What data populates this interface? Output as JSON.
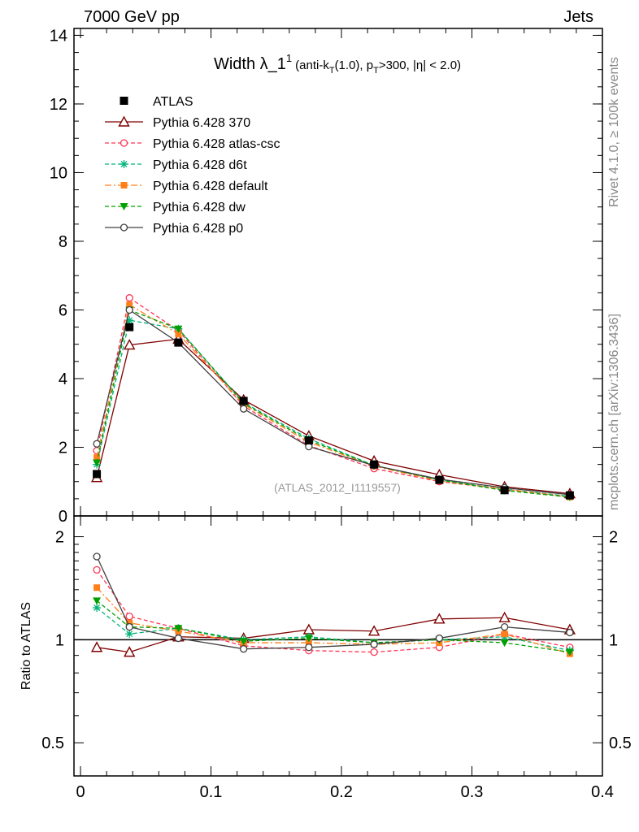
{
  "header": {
    "left": "7000 GeV pp",
    "right": "Jets"
  },
  "title": {
    "main": "Width λ_1",
    "sup": "1",
    "detail_a": "(anti-k",
    "detail_sub1": "T",
    "detail_b": "(1.0), p",
    "detail_sub2": "T",
    "detail_c": ">300, |η| < 2.0)"
  },
  "side_labels": {
    "rivet": "Rivet 4.1.0, ≥ 100k events",
    "mcplots": "mcplots.cern.ch [arXiv:1306.3436]"
  },
  "analysis_label": "(ATLAS_2012_I1119557)",
  "ratio_ylabel": "Ratio to ATLAS",
  "colors": {
    "data": "#000000",
    "p370": "#800000",
    "atlascsc": "#ff3355",
    "d6t": "#00b37a",
    "default": "#ff7f1a",
    "dw": "#00a000",
    "p0": "#404040"
  },
  "chart_data": {
    "type": "line",
    "x": [
      0.0125,
      0.0375,
      0.075,
      0.125,
      0.175,
      0.225,
      0.275,
      0.325,
      0.375
    ],
    "xlim": [
      -0.005,
      0.4
    ],
    "xticks": [
      0,
      0.1,
      0.2,
      0.3,
      0.4
    ],
    "xtick_labels": [
      "0",
      "0.1",
      "0.2",
      "0.3",
      "0.4"
    ],
    "main_ylim": [
      0,
      14.2
    ],
    "main_yticks": [
      0,
      2,
      4,
      6,
      8,
      10,
      12,
      14
    ],
    "main_ytick_labels": [
      "0",
      "2",
      "4",
      "6",
      "8",
      "10",
      "12",
      "14"
    ],
    "ratio_ylim": [
      0.4,
      2.3
    ],
    "ratio_ylabel": "Ratio to ATLAS",
    "ratio_yticks": [
      0.5,
      1,
      2
    ],
    "ratio_ytick_labels": [
      "0.5",
      "1",
      "2"
    ],
    "data": {
      "name": "ATLAS",
      "values": [
        1.22,
        5.5,
        5.05,
        3.35,
        2.2,
        1.5,
        1.05,
        0.75,
        0.6
      ]
    },
    "series": [
      {
        "name": "Pythia 6.428 370",
        "key": "p370",
        "style": "solid",
        "marker": "triangle-open",
        "values": [
          1.12,
          4.98,
          5.15,
          3.38,
          2.33,
          1.6,
          1.2,
          0.85,
          0.65
        ],
        "ratio": [
          0.95,
          0.92,
          1.02,
          1.01,
          1.07,
          1.06,
          1.15,
          1.16,
          1.07
        ]
      },
      {
        "name": "Pythia 6.428 atlas-csc",
        "key": "atlascsc",
        "style": "dashed",
        "marker": "circle-open",
        "values": [
          1.9,
          6.35,
          5.4,
          3.2,
          2.05,
          1.38,
          1.0,
          0.78,
          0.57
        ],
        "ratio": [
          1.6,
          1.17,
          1.08,
          0.96,
          0.93,
          0.92,
          0.95,
          1.04,
          0.95
        ]
      },
      {
        "name": "Pythia 6.428 d6t",
        "key": "d6t",
        "style": "dashed",
        "marker": "star",
        "values": [
          1.5,
          5.7,
          5.45,
          3.3,
          2.25,
          1.47,
          1.05,
          0.78,
          0.57
        ],
        "ratio": [
          1.24,
          1.04,
          1.08,
          1.0,
          1.02,
          0.98,
          1.0,
          1.02,
          0.93
        ]
      },
      {
        "name": "Pythia 6.428 default",
        "key": "default",
        "style": "dashdot",
        "marker": "square-filled",
        "values": [
          1.7,
          6.15,
          5.3,
          3.25,
          2.15,
          1.45,
          1.02,
          0.78,
          0.55
        ],
        "ratio": [
          1.42,
          1.12,
          1.06,
          0.98,
          0.98,
          0.97,
          0.98,
          1.04,
          0.91
        ]
      },
      {
        "name": "Pythia 6.428 dw",
        "key": "dw",
        "style": "dashed",
        "marker": "triangle-down-filled",
        "values": [
          1.55,
          6.0,
          5.45,
          3.28,
          2.2,
          1.47,
          1.05,
          0.74,
          0.55
        ],
        "ratio": [
          1.3,
          1.09,
          1.08,
          0.99,
          1.01,
          0.98,
          1.0,
          0.98,
          0.92
        ]
      },
      {
        "name": "Pythia 6.428 p0",
        "key": "p0",
        "style": "solid",
        "marker": "circle-open",
        "values": [
          2.1,
          6.0,
          5.05,
          3.12,
          2.02,
          1.47,
          1.07,
          0.82,
          0.62
        ],
        "ratio": [
          1.75,
          1.09,
          1.01,
          0.94,
          0.95,
          0.97,
          1.01,
          1.09,
          1.05
        ]
      }
    ]
  }
}
